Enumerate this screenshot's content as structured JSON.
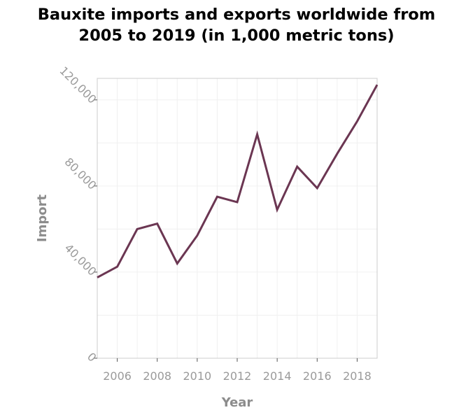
{
  "chart_data": {
    "type": "line",
    "title_line1": "Bauxite imports and exports worldwide from",
    "title_line2": "2005 to 2019 (in 1,000 metric tons)",
    "xlabel": "Year",
    "ylabel": "Import",
    "x_ticks": [
      "2006",
      "2008",
      "2010",
      "2012",
      "2014",
      "2016",
      "2018"
    ],
    "y_ticks": [
      "0",
      "40,000",
      "80,000",
      "120,000"
    ],
    "xlim": [
      2005,
      2019
    ],
    "ylim": [
      0,
      130000
    ],
    "grid": true,
    "line_color": "#6b3652",
    "series": [
      {
        "x": [
          2005,
          2006,
          2007,
          2008,
          2009,
          2010,
          2011,
          2012,
          2013,
          2014,
          2015,
          2016,
          2017,
          2018,
          2019
        ],
        "values": [
          37500,
          42500,
          60000,
          62500,
          44000,
          57000,
          75000,
          72500,
          104000,
          69000,
          89000,
          79000,
          95000,
          110000,
          127000
        ]
      }
    ]
  }
}
